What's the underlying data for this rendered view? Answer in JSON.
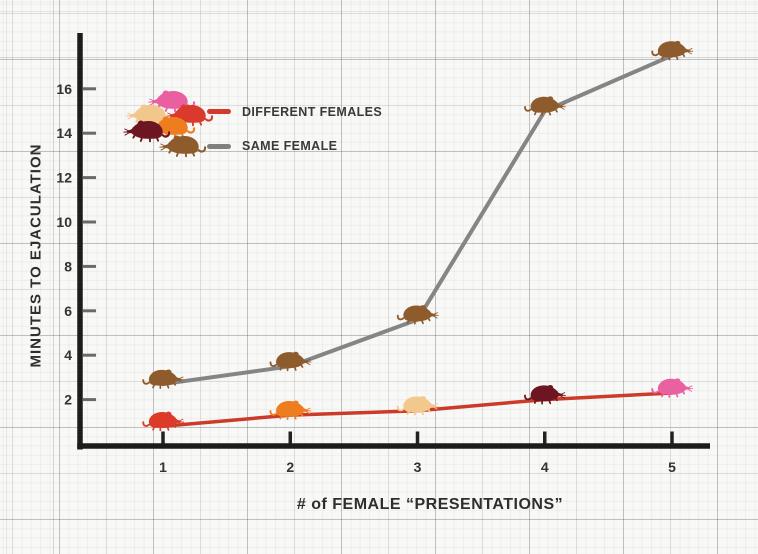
{
  "legend": {
    "items": [
      {
        "label": "DIFFERENT FEMALES",
        "color": "#d23b2b",
        "swatch_rat_colors": [
          "#ea5f9f",
          "#f2c78b",
          "#d93a2b",
          "#ee7d1f",
          "#6d1520"
        ]
      },
      {
        "label": "SAME FEMALE",
        "color": "#7f7f7f",
        "swatch_rat_colors": [
          "#8e5b2d"
        ]
      }
    ]
  },
  "chart_data": {
    "type": "line",
    "x": [
      1,
      2,
      3,
      4,
      5
    ],
    "xticks": [
      1,
      2,
      3,
      4,
      5
    ],
    "yticks": [
      2,
      4,
      6,
      8,
      10,
      12,
      14,
      16
    ],
    "ylim": [
      0,
      18.5
    ],
    "xlabel": "# of FEMALE “PRESENTATIONS”",
    "ylabel": "MINUTES TO EJACULATION",
    "grid": "graph-paper",
    "legend_position": "upper-left-inside",
    "point_marker": "rat-icon",
    "series": [
      {
        "name": "DIFFERENT FEMALES",
        "color": "#cc3a2a",
        "line_width": 3.5,
        "values": [
          0.8,
          1.3,
          1.5,
          2.0,
          2.3
        ],
        "point_colors": [
          "#dc3b2a",
          "#ee7d1f",
          "#f2c88c",
          "#6d1520",
          "#ea61a1"
        ]
      },
      {
        "name": "SAME FEMALE",
        "color": "#858585",
        "line_width": 4,
        "values": [
          2.7,
          3.5,
          5.6,
          15.0,
          17.5
        ],
        "point_colors": [
          "#8e5b2d",
          "#8e5b2d",
          "#8e5b2d",
          "#8e5b2d",
          "#8e5b2d"
        ]
      }
    ],
    "axis_color": "#1c1c1c",
    "tick_text_color": "#333333"
  }
}
